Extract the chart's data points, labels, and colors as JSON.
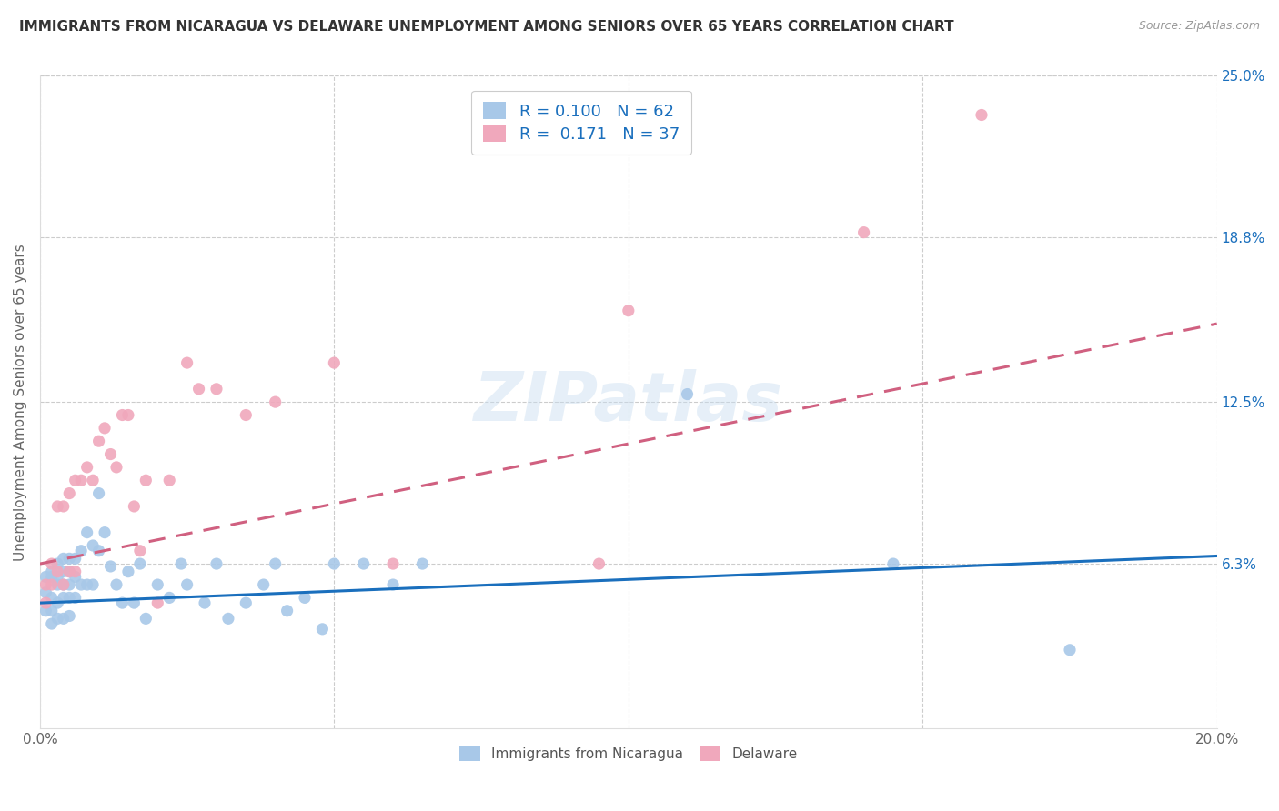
{
  "title": "IMMIGRANTS FROM NICARAGUA VS DELAWARE UNEMPLOYMENT AMONG SENIORS OVER 65 YEARS CORRELATION CHART",
  "source": "Source: ZipAtlas.com",
  "ylabel": "Unemployment Among Seniors over 65 years",
  "xlim": [
    0.0,
    0.2
  ],
  "ylim": [
    0.0,
    0.25
  ],
  "yticks": [
    0.063,
    0.125,
    0.188,
    0.25
  ],
  "ytick_labels": [
    "6.3%",
    "12.5%",
    "18.8%",
    "25.0%"
  ],
  "xticks": [
    0.0,
    0.05,
    0.1,
    0.15,
    0.2
  ],
  "xtick_labels": [
    "0.0%",
    "",
    "",
    "",
    "20.0%"
  ],
  "blue_R": 0.1,
  "blue_N": 62,
  "pink_R": 0.171,
  "pink_N": 37,
  "blue_color": "#a8c8e8",
  "pink_color": "#f0a8bc",
  "blue_line_color": "#1a6fbd",
  "pink_line_color": "#d06080",
  "pink_line_dash": true,
  "watermark": "ZIPatlas",
  "blue_line_x0": 0.0,
  "blue_line_y0": 0.048,
  "blue_line_x1": 0.2,
  "blue_line_y1": 0.066,
  "pink_line_x0": 0.0,
  "pink_line_y0": 0.063,
  "pink_line_x1": 0.2,
  "pink_line_y1": 0.155,
  "blue_scatter_x": [
    0.001,
    0.001,
    0.001,
    0.002,
    0.002,
    0.002,
    0.002,
    0.002,
    0.003,
    0.003,
    0.003,
    0.003,
    0.003,
    0.004,
    0.004,
    0.004,
    0.004,
    0.004,
    0.005,
    0.005,
    0.005,
    0.005,
    0.005,
    0.006,
    0.006,
    0.006,
    0.007,
    0.007,
    0.008,
    0.008,
    0.009,
    0.009,
    0.01,
    0.01,
    0.011,
    0.012,
    0.013,
    0.014,
    0.015,
    0.016,
    0.017,
    0.018,
    0.02,
    0.022,
    0.024,
    0.025,
    0.028,
    0.03,
    0.032,
    0.035,
    0.038,
    0.04,
    0.042,
    0.045,
    0.048,
    0.05,
    0.055,
    0.06,
    0.065,
    0.11,
    0.145,
    0.175
  ],
  "blue_scatter_y": [
    0.058,
    0.052,
    0.045,
    0.06,
    0.058,
    0.05,
    0.045,
    0.04,
    0.063,
    0.058,
    0.055,
    0.048,
    0.042,
    0.065,
    0.06,
    0.055,
    0.05,
    0.042,
    0.065,
    0.06,
    0.055,
    0.05,
    0.043,
    0.065,
    0.058,
    0.05,
    0.068,
    0.055,
    0.075,
    0.055,
    0.07,
    0.055,
    0.09,
    0.068,
    0.075,
    0.062,
    0.055,
    0.048,
    0.06,
    0.048,
    0.063,
    0.042,
    0.055,
    0.05,
    0.063,
    0.055,
    0.048,
    0.063,
    0.042,
    0.048,
    0.055,
    0.063,
    0.045,
    0.05,
    0.038,
    0.063,
    0.063,
    0.055,
    0.063,
    0.128,
    0.063,
    0.03
  ],
  "pink_scatter_x": [
    0.001,
    0.001,
    0.002,
    0.002,
    0.003,
    0.003,
    0.004,
    0.004,
    0.005,
    0.005,
    0.006,
    0.006,
    0.007,
    0.008,
    0.009,
    0.01,
    0.011,
    0.012,
    0.013,
    0.014,
    0.015,
    0.016,
    0.017,
    0.018,
    0.02,
    0.022,
    0.025,
    0.027,
    0.03,
    0.035,
    0.04,
    0.05,
    0.06,
    0.095,
    0.1,
    0.14,
    0.16
  ],
  "pink_scatter_y": [
    0.055,
    0.048,
    0.063,
    0.055,
    0.085,
    0.06,
    0.085,
    0.055,
    0.09,
    0.06,
    0.095,
    0.06,
    0.095,
    0.1,
    0.095,
    0.11,
    0.115,
    0.105,
    0.1,
    0.12,
    0.12,
    0.085,
    0.068,
    0.095,
    0.048,
    0.095,
    0.14,
    0.13,
    0.13,
    0.12,
    0.125,
    0.14,
    0.063,
    0.063,
    0.16,
    0.19,
    0.235
  ]
}
